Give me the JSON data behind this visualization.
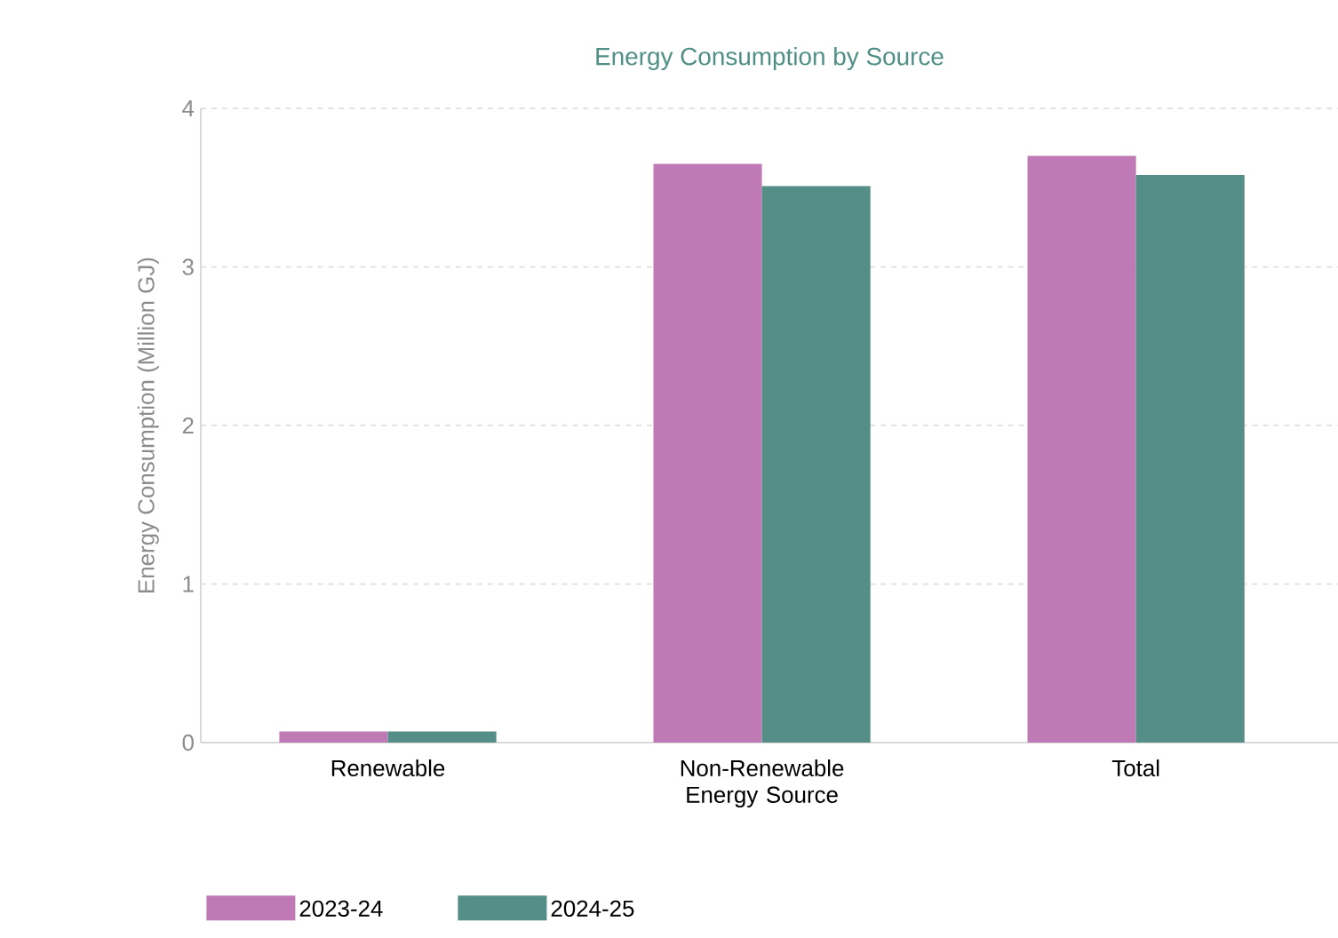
{
  "chart_data": {
    "type": "bar",
    "title": "Energy Consumption by Source",
    "ylabel": "Energy Consumption (Million GJ)",
    "categories": [
      "Renewable",
      "Non-Renewable Energy Source",
      "Total"
    ],
    "series": [
      {
        "name": "2023-24",
        "color": "#bf7ab5",
        "values": [
          0.07,
          3.65,
          3.7
        ]
      },
      {
        "name": "2024-25",
        "color": "#548e87",
        "values": [
          0.07,
          3.51,
          3.58
        ]
      }
    ],
    "ylim": [
      0,
      4
    ],
    "yticks": [
      0,
      1,
      2,
      3,
      4
    ],
    "grid": "y",
    "legend": "bottom"
  }
}
